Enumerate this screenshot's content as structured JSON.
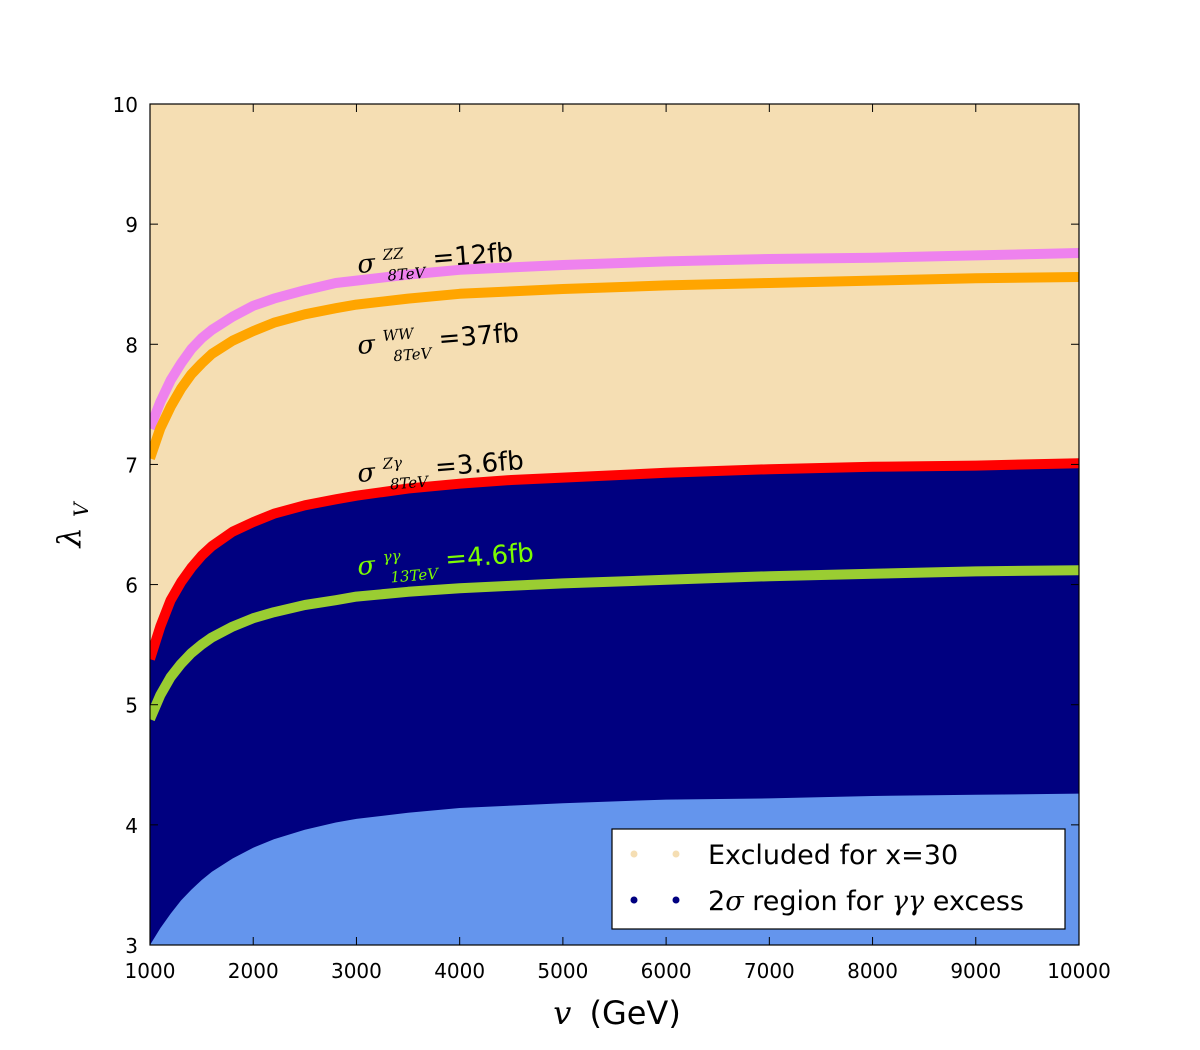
{
  "chart_data": {
    "type": "area",
    "xlabel_math": "v",
    "xlabel_unit": "(GeV)",
    "ylabel_math": "λ",
    "ylabel_sub": "V",
    "xlim": [
      1000,
      10000
    ],
    "ylim": [
      3,
      10
    ],
    "xticks": [
      "1000",
      "2000",
      "3000",
      "4000",
      "5000",
      "6000",
      "7000",
      "8000",
      "9000",
      "10000"
    ],
    "yticks": [
      "3",
      "4",
      "5",
      "6",
      "7",
      "8",
      "9",
      "10"
    ],
    "x": [
      1000,
      1100,
      1200,
      1300,
      1400,
      1500,
      1600,
      1800,
      2000,
      2200,
      2500,
      2800,
      3000,
      3500,
      4000,
      4500,
      5000,
      6000,
      7000,
      8000,
      9000,
      10000
    ],
    "regions": {
      "excluded": {
        "color": "#f5deb3"
      },
      "two_sigma": {
        "color": "#000080"
      },
      "lower": {
        "color": "#6495ed"
      }
    },
    "lower_boundary": [
      3.0,
      3.14,
      3.26,
      3.37,
      3.46,
      3.54,
      3.61,
      3.72,
      3.81,
      3.88,
      3.96,
      4.02,
      4.05,
      4.1,
      4.14,
      4.16,
      4.18,
      4.21,
      4.22,
      4.24,
      4.25,
      4.26
    ],
    "series": [
      {
        "name": "ZZ",
        "color": "#ee82ee",
        "values": [
          7.3,
          7.52,
          7.7,
          7.84,
          7.96,
          8.05,
          8.12,
          8.23,
          8.32,
          8.38,
          8.45,
          8.51,
          8.53,
          8.58,
          8.62,
          8.64,
          8.66,
          8.69,
          8.71,
          8.72,
          8.74,
          8.76
        ]
      },
      {
        "name": "WW",
        "color": "#ffa500",
        "values": [
          7.05,
          7.3,
          7.48,
          7.63,
          7.75,
          7.84,
          7.92,
          8.03,
          8.11,
          8.18,
          8.25,
          8.3,
          8.33,
          8.38,
          8.42,
          8.44,
          8.46,
          8.49,
          8.51,
          8.53,
          8.55,
          8.56
        ]
      },
      {
        "name": "Zgamma",
        "color": "#ff0000",
        "values": [
          5.38,
          5.65,
          5.87,
          6.02,
          6.14,
          6.24,
          6.32,
          6.44,
          6.52,
          6.59,
          6.66,
          6.71,
          6.74,
          6.8,
          6.84,
          6.87,
          6.89,
          6.93,
          6.96,
          6.98,
          6.99,
          7.01
        ]
      },
      {
        "name": "gammagamma",
        "color": "#9acd32",
        "values": [
          4.88,
          5.08,
          5.23,
          5.34,
          5.43,
          5.5,
          5.56,
          5.65,
          5.72,
          5.77,
          5.83,
          5.87,
          5.9,
          5.94,
          5.97,
          5.99,
          6.01,
          6.04,
          6.07,
          6.09,
          6.11,
          6.12
        ]
      }
    ],
    "annotations": [
      {
        "id": "zz",
        "sigma": "σ",
        "sup": "ZZ",
        "sub": "8TeV",
        "text": "=12fb",
        "color": "#000000"
      },
      {
        "id": "ww",
        "sigma": "σ",
        "sup": "WW",
        "sub": "8TeV",
        "text": "=37fb",
        "color": "#000000"
      },
      {
        "id": "zg",
        "sigma": "σ",
        "sup": "Zγ",
        "sub": "8TeV",
        "text": "=3.6fb",
        "color": "#000000"
      },
      {
        "id": "gg",
        "sigma": "σ",
        "sup": "γγ",
        "sub": "13TeV",
        "text": "=4.6fb",
        "color": "#7cfc00"
      }
    ],
    "legend": {
      "position": "lower-right",
      "entries": [
        {
          "label": "Excluded for x=30",
          "color": "#f5deb3"
        },
        {
          "label_pre": "2",
          "label_sigma": "σ",
          "label_mid": " region for ",
          "label_gg": "γγ",
          "label_post": " excess",
          "color": "#000080"
        }
      ]
    }
  }
}
